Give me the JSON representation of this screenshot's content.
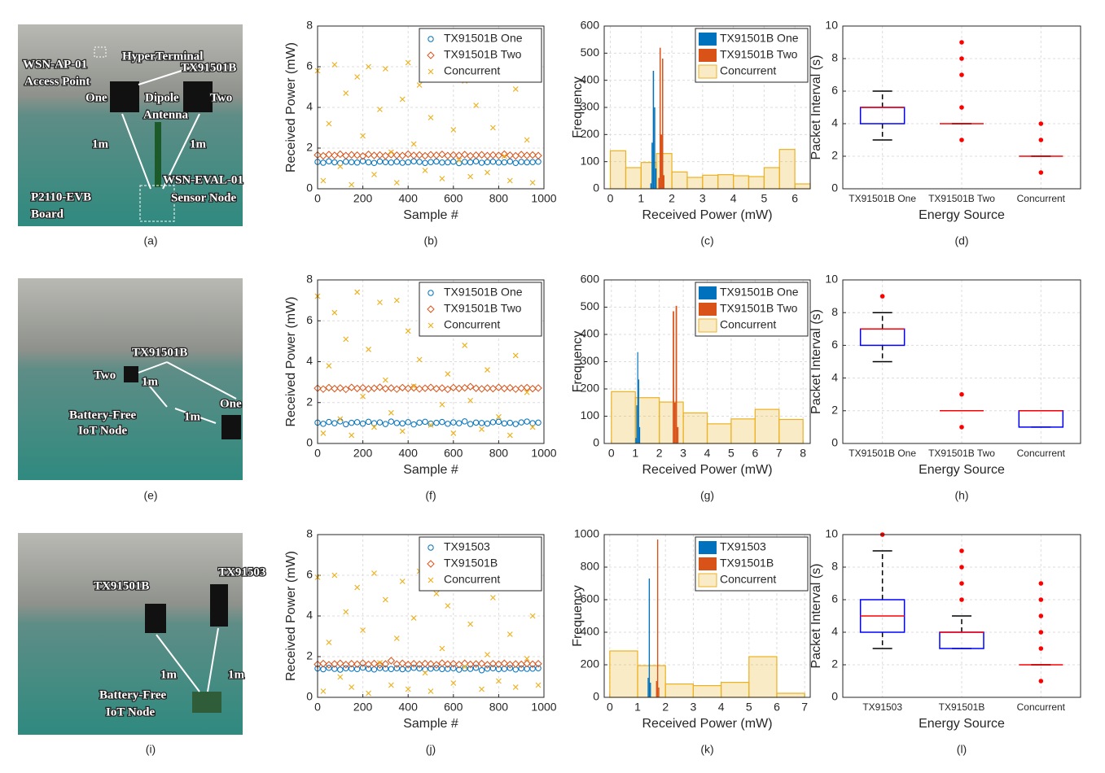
{
  "photos": [
    {
      "caption": "(a)",
      "labels": [
        "HyperTerminal",
        "WSN-AP-01",
        "Access Point",
        "TX91501B",
        "One",
        "Dipole",
        "Antenna",
        "Two",
        "1m",
        "1m",
        "WSN-EVAL-01",
        "Sensor Node",
        "P2110-EVB",
        "Board"
      ]
    },
    {
      "caption": "(e)",
      "labels": [
        "TX91501B",
        "Two",
        "1m",
        "1m",
        "One",
        "Battery-Free",
        "IoT Node"
      ]
    },
    {
      "caption": "(i)",
      "labels": [
        "TX91501B",
        "TX91503",
        "1m",
        "1m",
        "Battery-Free",
        "IoT Node"
      ]
    }
  ],
  "chart_data": [
    {
      "type": "scatter",
      "caption": "(b)",
      "xlabel": "Sample #",
      "ylabel": "Received Power (mW)",
      "xlim": [
        0,
        1000
      ],
      "ylim": [
        0,
        8
      ],
      "xticks": [
        0,
        200,
        400,
        600,
        800,
        1000
      ],
      "yticks": [
        0,
        2,
        4,
        6,
        8
      ],
      "grid": true,
      "legend": "upper right",
      "x": [
        0,
        25,
        50,
        75,
        100,
        125,
        150,
        175,
        200,
        225,
        250,
        275,
        300,
        325,
        350,
        375,
        400,
        425,
        450,
        475,
        500,
        525,
        550,
        575,
        600,
        625,
        650,
        675,
        700,
        725,
        750,
        775,
        800,
        825,
        850,
        875,
        900,
        925,
        950,
        975
      ],
      "series": [
        {
          "name": "TX91501B One",
          "color": "#0072bd",
          "marker": "o",
          "values": [
            1.32,
            1.28,
            1.35,
            1.3,
            1.26,
            1.33,
            1.31,
            1.29,
            1.36,
            1.3,
            1.27,
            1.34,
            1.31,
            1.29,
            1.33,
            1.28,
            1.3,
            1.35,
            1.32,
            1.27,
            1.31,
            1.34,
            1.29,
            1.3,
            1.33,
            1.26,
            1.32,
            1.3,
            1.35,
            1.28,
            1.31,
            1.33,
            1.29,
            1.3,
            1.34,
            1.27,
            1.32,
            1.3,
            1.31,
            1.33
          ]
        },
        {
          "name": "TX91501B Two",
          "color": "#d95319",
          "marker": "d",
          "values": [
            1.66,
            1.62,
            1.68,
            1.64,
            1.7,
            1.63,
            1.67,
            1.65,
            1.61,
            1.69,
            1.64,
            1.66,
            1.62,
            1.68,
            1.65,
            1.63,
            1.7,
            1.64,
            1.66,
            1.62,
            1.67,
            1.65,
            1.69,
            1.63,
            1.66,
            1.64,
            1.68,
            1.62,
            1.65,
            1.67,
            1.63,
            1.66,
            1.64,
            1.7,
            1.65,
            1.62,
            1.68,
            1.64,
            1.66,
            1.63
          ]
        },
        {
          "name": "Concurrent",
          "color": "#edb120",
          "marker": "x",
          "values": [
            5.8,
            0.4,
            3.2,
            6.1,
            1.1,
            4.7,
            0.2,
            5.5,
            2.6,
            6.0,
            0.7,
            3.9,
            5.9,
            1.8,
            0.3,
            4.4,
            6.2,
            2.2,
            5.1,
            0.9,
            3.5,
            5.7,
            0.5,
            6.1,
            2.9,
            1.4,
            5.3,
            0.6,
            4.1,
            6.0,
            0.8,
            3.0,
            5.6,
            1.6,
            0.4,
            4.9,
            6.1,
            2.4,
            0.3,
            5.8
          ]
        }
      ]
    },
    {
      "type": "histogram",
      "caption": "(c)",
      "xlabel": "Received Power (mW)",
      "ylabel": "Frequency",
      "xlim": [
        -0.2,
        6.5
      ],
      "ylim": [
        0,
        600
      ],
      "xticks": [
        0,
        1,
        2,
        3,
        4,
        5,
        6
      ],
      "yticks": [
        0,
        100,
        200,
        300,
        400,
        500,
        600
      ],
      "grid": true,
      "legend": "upper right",
      "series": [
        {
          "name": "TX91501B One",
          "color": "#0072bd",
          "alpha": 1,
          "bins": [
            1.3,
            1.34,
            1.38,
            1.42,
            1.46,
            1.5
          ],
          "values": [
            20,
            170,
            435,
            300,
            75
          ]
        },
        {
          "name": "TX91501B Two",
          "color": "#d95319",
          "alpha": 1,
          "bins": [
            1.56,
            1.6,
            1.64,
            1.68,
            1.72,
            1.76
          ],
          "values": [
            40,
            520,
            200,
            480,
            50
          ]
        },
        {
          "name": "Concurrent",
          "color": "#edb120",
          "alpha": 0.25,
          "bins": [
            0,
            0.5,
            1,
            1.5,
            2,
            2.5,
            3,
            3.5,
            4,
            4.5,
            5,
            5.5,
            6,
            6.5
          ],
          "values": [
            140,
            78,
            97,
            130,
            62,
            42,
            50,
            52,
            48,
            45,
            78,
            145,
            18
          ]
        }
      ]
    },
    {
      "type": "box",
      "caption": "(d)",
      "xlabel": "Energy Source",
      "ylabel": "Packet Interval (s)",
      "ylim": [
        0,
        10
      ],
      "yticks": [
        0,
        2,
        4,
        6,
        8,
        10
      ],
      "grid": true,
      "box_color": "#0000ff",
      "median_color": "#ff0000",
      "flier_color": "#ff0000",
      "categories": [
        "TX91501B One",
        "TX91501B Two",
        "Concurrent"
      ],
      "boxes": [
        {
          "q1": 4,
          "median": 5,
          "q3": 5,
          "whislo": 3,
          "whishi": 6,
          "fliers": []
        },
        {
          "q1": 4,
          "median": 4,
          "q3": 4,
          "whislo": 4,
          "whishi": 4,
          "fliers": [
            3,
            5,
            7,
            8,
            9
          ]
        },
        {
          "q1": 2,
          "median": 2,
          "q3": 2,
          "whislo": 2,
          "whishi": 2,
          "fliers": [
            1,
            3,
            4
          ]
        }
      ]
    },
    {
      "type": "scatter",
      "caption": "(f)",
      "xlabel": "Sample #",
      "ylabel": "Received Power (mW)",
      "xlim": [
        0,
        1000
      ],
      "ylim": [
        0,
        8
      ],
      "xticks": [
        0,
        200,
        400,
        600,
        800,
        1000
      ],
      "yticks": [
        0,
        2,
        4,
        6,
        8
      ],
      "grid": true,
      "legend": "upper right",
      "x": [
        0,
        25,
        50,
        75,
        100,
        125,
        150,
        175,
        200,
        225,
        250,
        275,
        300,
        325,
        350,
        375,
        400,
        425,
        450,
        475,
        500,
        525,
        550,
        575,
        600,
        625,
        650,
        675,
        700,
        725,
        750,
        775,
        800,
        825,
        850,
        875,
        900,
        925,
        950,
        975
      ],
      "series": [
        {
          "name": "TX91501B One",
          "color": "#0072bd",
          "marker": "o",
          "values": [
            1.02,
            0.96,
            1.05,
            0.99,
            1.08,
            0.94,
            1.01,
            1.04,
            0.97,
            1.06,
            0.99,
            1.03,
            0.95,
            1.07,
            1.0,
            0.98,
            1.04,
            0.93,
            1.02,
            1.06,
            0.97,
            1.01,
            1.05,
            0.96,
            1.03,
            0.99,
            1.08,
            0.95,
            1.02,
            1.0,
            0.97,
            1.04,
            1.06,
            0.98,
            1.01,
            0.95,
            1.03,
            1.07,
            0.99,
            1.02
          ]
        },
        {
          "name": "TX91501B Two",
          "color": "#d95319",
          "marker": "d",
          "values": [
            2.7,
            2.66,
            2.73,
            2.68,
            2.71,
            2.65,
            2.74,
            2.69,
            2.72,
            2.67,
            2.7,
            2.75,
            2.68,
            2.71,
            2.66,
            2.73,
            2.69,
            2.72,
            2.67,
            2.7,
            2.74,
            2.68,
            2.71,
            2.65,
            2.73,
            2.69,
            2.72,
            2.78,
            2.7,
            2.67,
            2.71,
            2.68,
            2.74,
            2.69,
            2.72,
            2.66,
            2.7,
            2.73,
            2.68,
            2.71
          ]
        },
        {
          "name": "Concurrent",
          "color": "#edb120",
          "marker": "x",
          "values": [
            7.2,
            0.5,
            3.8,
            6.4,
            1.2,
            5.1,
            0.4,
            7.4,
            2.3,
            4.6,
            0.8,
            6.9,
            3.1,
            1.5,
            7.0,
            0.6,
            5.5,
            2.8,
            4.1,
            7.3,
            0.9,
            6.0,
            1.9,
            3.4,
            0.5,
            7.1,
            4.8,
            2.1,
            6.6,
            0.7,
            3.6,
            5.8,
            1.3,
            7.4,
            0.4,
            4.3,
            6.2,
            2.5,
            0.8,
            5.9
          ]
        }
      ]
    },
    {
      "type": "histogram",
      "caption": "(g)",
      "xlabel": "Received Power (mW)",
      "ylabel": "Frequency",
      "xlim": [
        -0.3,
        8.3
      ],
      "ylim": [
        0,
        600
      ],
      "xticks": [
        0,
        1,
        2,
        3,
        4,
        5,
        6,
        7,
        8
      ],
      "yticks": [
        0,
        100,
        200,
        300,
        400,
        500,
        600
      ],
      "grid": true,
      "legend": "upper right",
      "series": [
        {
          "name": "TX91501B One",
          "color": "#0072bd",
          "alpha": 1,
          "bins": [
            1.0,
            1.04,
            1.08,
            1.12,
            1.16,
            1.2
          ],
          "values": [
            20,
            140,
            335,
            235,
            60
          ]
        },
        {
          "name": "TX91501B Two",
          "color": "#d95319",
          "alpha": 1,
          "bins": [
            2.56,
            2.62,
            2.68,
            2.74,
            2.8
          ],
          "values": [
            485,
            150,
            505,
            60
          ]
        },
        {
          "name": "Concurrent",
          "color": "#edb120",
          "alpha": 0.25,
          "bins": [
            0,
            1,
            2,
            3,
            4,
            5,
            6,
            7,
            8
          ],
          "values": [
            190,
            168,
            152,
            112,
            72,
            90,
            125,
            88
          ]
        }
      ]
    },
    {
      "type": "box",
      "caption": "(h)",
      "xlabel": "Energy Source",
      "ylabel": "Packet Interval (s)",
      "ylim": [
        0,
        10
      ],
      "yticks": [
        0,
        2,
        4,
        6,
        8,
        10
      ],
      "grid": true,
      "box_color": "#0000ff",
      "median_color": "#ff0000",
      "flier_color": "#ff0000",
      "categories": [
        "TX91501B One",
        "TX91501B Two",
        "Concurrent"
      ],
      "boxes": [
        {
          "q1": 6,
          "median": 7,
          "q3": 7,
          "whislo": 5,
          "whishi": 8,
          "fliers": [
            9
          ]
        },
        {
          "q1": 2,
          "median": 2,
          "q3": 2,
          "whislo": 2,
          "whishi": 2,
          "fliers": [
            1,
            3
          ]
        },
        {
          "q1": 1,
          "median": 2,
          "q3": 2,
          "whislo": 1,
          "whishi": 2,
          "fliers": []
        }
      ]
    },
    {
      "type": "scatter",
      "caption": "(j)",
      "xlabel": "Sample #",
      "ylabel": "Received Power (mW)",
      "xlim": [
        0,
        1000
      ],
      "ylim": [
        0,
        8
      ],
      "xticks": [
        0,
        200,
        400,
        600,
        800,
        1000
      ],
      "yticks": [
        0,
        2,
        4,
        6,
        8
      ],
      "grid": true,
      "legend": "upper right",
      "x": [
        0,
        25,
        50,
        75,
        100,
        125,
        150,
        175,
        200,
        225,
        250,
        275,
        300,
        325,
        350,
        375,
        400,
        425,
        450,
        475,
        500,
        525,
        550,
        575,
        600,
        625,
        650,
        675,
        700,
        725,
        750,
        775,
        800,
        825,
        850,
        875,
        900,
        925,
        950,
        975
      ],
      "series": [
        {
          "name": "TX91503",
          "color": "#0072bd",
          "marker": "o",
          "values": [
            1.42,
            1.38,
            1.45,
            1.4,
            1.36,
            1.43,
            1.41,
            1.39,
            1.46,
            1.4,
            1.37,
            1.44,
            1.41,
            1.39,
            1.43,
            1.38,
            1.4,
            1.45,
            1.42,
            1.37,
            1.41,
            1.44,
            1.39,
            1.4,
            1.43,
            1.36,
            1.42,
            1.4,
            1.45,
            1.33,
            1.41,
            1.43,
            1.39,
            1.4,
            1.44,
            1.37,
            1.42,
            1.4,
            1.41,
            1.43
          ]
        },
        {
          "name": "TX91501B",
          "color": "#d95319",
          "marker": "d",
          "values": [
            1.62,
            1.66,
            1.6,
            1.64,
            1.67,
            1.61,
            1.65,
            1.63,
            1.68,
            1.62,
            1.66,
            1.6,
            1.64,
            1.8,
            1.63,
            1.67,
            1.61,
            1.65,
            1.62,
            1.66,
            1.64,
            1.6,
            1.68,
            1.63,
            1.65,
            1.61,
            1.67,
            1.62,
            1.64,
            1.66,
            1.6,
            1.65,
            1.63,
            1.67,
            1.61,
            1.64,
            1.62,
            1.66,
            1.63,
            1.65
          ]
        },
        {
          "name": "Concurrent",
          "color": "#edb120",
          "marker": "x",
          "values": [
            5.9,
            0.3,
            2.7,
            6.0,
            1.0,
            4.2,
            0.5,
            5.4,
            3.3,
            0.2,
            6.1,
            1.7,
            4.8,
            0.6,
            2.9,
            5.7,
            0.4,
            3.9,
            6.2,
            1.2,
            0.3,
            5.1,
            2.4,
            4.5,
            0.7,
            6.0,
            1.5,
            3.6,
            5.5,
            0.4,
            2.1,
            4.9,
            0.8,
            5.8,
            3.1,
            0.5,
            6.1,
            1.9,
            4.0,
            0.6
          ]
        }
      ]
    },
    {
      "type": "histogram",
      "caption": "(k)",
      "xlabel": "Received Power (mW)",
      "ylabel": "Frequency",
      "xlim": [
        -0.2,
        7.2
      ],
      "ylim": [
        0,
        1000
      ],
      "xticks": [
        0,
        1,
        2,
        3,
        4,
        5,
        6,
        7
      ],
      "yticks": [
        0,
        200,
        400,
        600,
        800,
        1000
      ],
      "grid": true,
      "legend": "upper right",
      "series": [
        {
          "name": "TX91503",
          "color": "#0072bd",
          "alpha": 1,
          "bins": [
            1.36,
            1.4,
            1.44,
            1.48
          ],
          "values": [
            120,
            730,
            90
          ]
        },
        {
          "name": "TX91501B",
          "color": "#d95319",
          "alpha": 1,
          "bins": [
            1.66,
            1.7,
            1.74,
            1.78
          ],
          "values": [
            100,
            970,
            60
          ]
        },
        {
          "name": "Concurrent",
          "color": "#edb120",
          "alpha": 0.25,
          "bins": [
            0,
            1,
            2,
            3,
            4,
            5,
            6,
            7
          ],
          "values": [
            285,
            195,
            82,
            72,
            92,
            250,
            25
          ]
        }
      ]
    },
    {
      "type": "box",
      "caption": "(l)",
      "xlabel": "Energy Source",
      "ylabel": "Packet Interval (s)",
      "ylim": [
        0,
        10
      ],
      "yticks": [
        0,
        2,
        4,
        6,
        8,
        10
      ],
      "grid": true,
      "box_color": "#0000ff",
      "median_color": "#ff0000",
      "flier_color": "#ff0000",
      "categories": [
        "TX91503",
        "TX91501B",
        "Concurrent"
      ],
      "boxes": [
        {
          "q1": 4,
          "median": 5,
          "q3": 6,
          "whislo": 3,
          "whishi": 9,
          "fliers": [
            10
          ]
        },
        {
          "q1": 3,
          "median": 4,
          "q3": 4,
          "whislo": 3,
          "whishi": 5,
          "fliers": [
            6,
            7,
            8,
            9
          ]
        },
        {
          "q1": 2,
          "median": 2,
          "q3": 2,
          "whislo": 2,
          "whishi": 2,
          "fliers": [
            1,
            3,
            4,
            5,
            6,
            7
          ]
        }
      ]
    }
  ]
}
